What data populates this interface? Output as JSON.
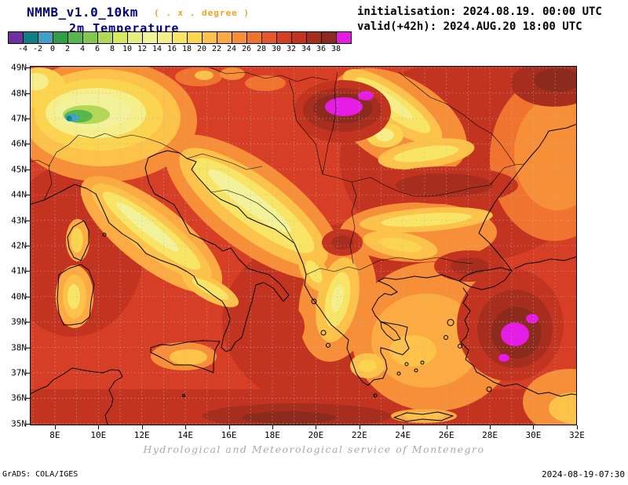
{
  "header": {
    "model": "NMMB_v1.0_10km",
    "grid_note": "( . x . degree )",
    "variable": "2m Temperature",
    "initialisation": "initialisation: 2024.08.19. 00:00 UTC",
    "valid": "valid(+42h): 2024.AUG.20 18:00 UTC"
  },
  "colorbar": {
    "tick_labels": [
      "-4",
      "-2",
      "0",
      "2",
      "4",
      "6",
      "8",
      "10",
      "12",
      "14",
      "16",
      "18",
      "20",
      "22",
      "24",
      "26",
      "28",
      "30",
      "32",
      "34",
      "36",
      "38"
    ],
    "cell_colors": [
      "#7030a0",
      "#0e8083",
      "#3fa0c8",
      "#2f9e45",
      "#56b54b",
      "#84c750",
      "#b3d856",
      "#d8e961",
      "#e6ee7d",
      "#f2f29b",
      "#f5ee8a",
      "#f8e565",
      "#fbd450",
      "#fcc249",
      "#fbab41",
      "#f78f39",
      "#f07430",
      "#e4572a",
      "#d63f26",
      "#c23420",
      "#a72e1e",
      "#8c2a1e",
      "#e41ce4"
    ]
  },
  "map_axes": {
    "lat_labels": [
      "49N",
      "48N",
      "47N",
      "46N",
      "45N",
      "44N",
      "43N",
      "42N",
      "41N",
      "40N",
      "39N",
      "38N",
      "37N",
      "36N",
      "35N"
    ],
    "lon_labels": [
      "8E",
      "10E",
      "12E",
      "14E",
      "16E",
      "18E",
      "20E",
      "22E",
      "24E",
      "26E",
      "28E",
      "30E",
      "32E"
    ]
  },
  "footer": {
    "credit": "Hydrological and Meteorological service of Montenegro",
    "grads": "GrADS: COLA/IGES",
    "created": "2024-08-19-07:30"
  },
  "chart_data": {
    "type": "heatmap",
    "title": "NMMB_v1.0_10km 2m Temperature",
    "legend_levels_degC": [
      -4,
      -2,
      0,
      2,
      4,
      6,
      8,
      10,
      12,
      14,
      16,
      18,
      20,
      22,
      24,
      26,
      28,
      30,
      32,
      34,
      36,
      38
    ],
    "palette": [
      "#7030a0",
      "#0e8083",
      "#3fa0c8",
      "#2f9e45",
      "#56b54b",
      "#84c750",
      "#b3d856",
      "#d8e961",
      "#e6ee7d",
      "#f2f29b",
      "#f5ee8a",
      "#f8e565",
      "#fbd450",
      "#fcc249",
      "#fbab41",
      "#f78f39",
      "#f07430",
      "#e4572a",
      "#d63f26",
      "#c23420",
      "#a72e1e",
      "#8c2a1e",
      "#e41ce4"
    ],
    "x_axis": {
      "label_type": "longitude",
      "ticks": [
        "8E",
        "10E",
        "12E",
        "14E",
        "16E",
        "18E",
        "20E",
        "22E",
        "24E",
        "26E",
        "28E",
        "30E",
        "32E"
      ]
    },
    "y_axis": {
      "label_type": "latitude",
      "ticks": [
        "35N",
        "36N",
        "37N",
        "38N",
        "39N",
        "40N",
        "41N",
        "42N",
        "43N",
        "44N",
        "45N",
        "46N",
        "47N",
        "48N",
        "49N"
      ]
    },
    "initialisation": "2024.08.19. 00:00 UTC",
    "valid": "2024.AUG.20 18:00 UTC",
    "lead_hours": 42
  }
}
